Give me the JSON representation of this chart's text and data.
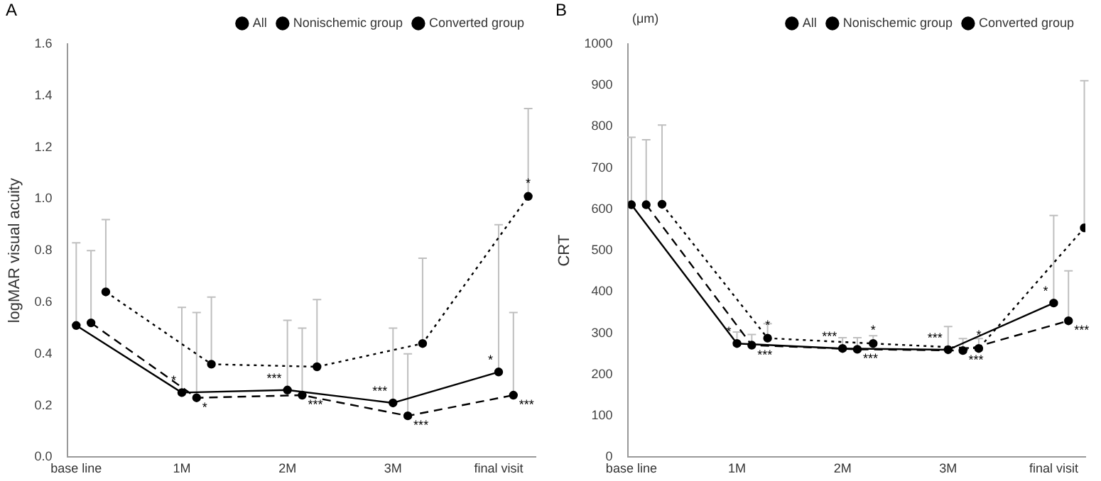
{
  "chart_data": [
    {
      "type": "line",
      "title": "A",
      "ylabel": "logMAR visual acuity",
      "xlim": [
        -0.08,
        4.35
      ],
      "xticks": [
        {
          "value": 0,
          "label": "base line"
        },
        {
          "value": 1,
          "label": "1M"
        },
        {
          "value": 2,
          "label": "2M"
        },
        {
          "value": 3,
          "label": "3M"
        },
        {
          "value": 4,
          "label": "final visit"
        }
      ],
      "ylim": [
        0,
        1.6
      ],
      "yticks": [
        {
          "value": 0,
          "label": "0.0"
        },
        0.2,
        0.4,
        0.6,
        0.8,
        {
          "value": 1,
          "label": "1.0"
        },
        1.2,
        1.4,
        1.6
      ],
      "grid": false,
      "legend": "top right",
      "marker": "circle",
      "series": [
        {
          "name": "All",
          "color": "#000000",
          "line_style": "solid",
          "x": [
            0,
            1,
            2,
            3,
            4
          ],
          "values": [
            0.51,
            0.25,
            0.26,
            0.21,
            0.33
          ],
          "errors": [
            [
              0.51,
              0.83
            ],
            [
              0.25,
              0.58
            ],
            [
              0.26,
              0.53
            ],
            [
              0.21,
              0.5
            ],
            [
              0.33,
              0.9
            ]
          ],
          "value_labels": [
            null,
            "*",
            "***",
            "***",
            "*"
          ]
        },
        {
          "name": "Nonischemic group",
          "color": "#000000",
          "line_style": "dashed",
          "x": [
            0.14,
            1.14,
            2.14,
            3.14,
            4.14
          ],
          "values": [
            0.52,
            0.23,
            0.24,
            0.16,
            0.24
          ],
          "errors": [
            [
              0.52,
              0.8
            ],
            [
              0.23,
              0.56
            ],
            [
              0.24,
              0.5
            ],
            [
              0.16,
              0.4
            ],
            [
              0.24,
              0.56
            ]
          ],
          "value_labels": [
            null,
            "*",
            "***",
            "***",
            "***"
          ]
        },
        {
          "name": "Converted group",
          "color": "#000000",
          "line_style": "dotted",
          "x": [
            0.28,
            1.28,
            2.28,
            3.28,
            4.28
          ],
          "values": [
            0.64,
            0.36,
            0.35,
            0.44,
            1.01
          ],
          "errors": [
            [
              0.64,
              0.92
            ],
            [
              0.36,
              0.62
            ],
            [
              0.35,
              0.61
            ],
            [
              0.44,
              0.77
            ],
            [
              1.01,
              1.35
            ]
          ],
          "value_labels": [
            null,
            null,
            null,
            null,
            "*"
          ]
        }
      ]
    },
    {
      "type": "line",
      "title": "B",
      "ylabel": "CRT",
      "xlim": [
        -0.03,
        4.3
      ],
      "xticks": [
        {
          "value": 0,
          "label": "base line"
        },
        {
          "value": 1,
          "label": "1M"
        },
        {
          "value": 2,
          "label": "2M"
        },
        {
          "value": 3,
          "label": "3M"
        },
        {
          "value": 4,
          "label": "final visit"
        }
      ],
      "ylim": [
        0,
        1000
      ],
      "yticks": [
        0,
        100,
        200,
        300,
        400,
        500,
        600,
        700,
        800,
        900,
        1000
      ],
      "grid": false,
      "legend": "top right",
      "marker": "circle",
      "series": [
        {
          "name": "All",
          "color": "#000000",
          "line_style": "solid",
          "x": [
            0,
            1,
            2,
            3,
            4
          ],
          "values": [
            611,
            275,
            263,
            260,
            373
          ],
          "errors": [
            [
              611,
              774
            ],
            [
              275,
              303
            ],
            [
              263,
              289
            ],
            [
              260,
              316
            ],
            [
              373,
              585
            ]
          ],
          "value_labels": [
            null,
            "*",
            "***",
            "***",
            "*"
          ]
        },
        {
          "name": "Nonischemic group",
          "color": "#000000",
          "line_style": "dashed",
          "x": [
            0.14,
            1.14,
            2.14,
            3.14,
            4.14
          ],
          "values": [
            611,
            271,
            261,
            258,
            330
          ],
          "errors": [
            [
              611,
              768
            ],
            [
              271,
              297
            ],
            [
              261,
              289
            ],
            [
              258,
              287
            ],
            [
              330,
              451
            ]
          ],
          "value_labels": [
            null,
            "***",
            "***",
            "***",
            "***"
          ]
        },
        {
          "name": "Converted group",
          "color": "#000000",
          "line_style": "dotted",
          "x": [
            0.29,
            1.29,
            2.29,
            3.29,
            4.29
          ],
          "values": [
            612,
            288,
            275,
            263,
            555
          ],
          "errors": [
            [
              612,
              804
            ],
            [
              288,
              323
            ],
            [
              275,
              294
            ],
            [
              263,
              287
            ],
            [
              555,
              911
            ]
          ],
          "value_labels": [
            null,
            "*",
            "*",
            "*",
            null
          ]
        }
      ],
      "annotations": [
        "(μm)"
      ]
    }
  ]
}
